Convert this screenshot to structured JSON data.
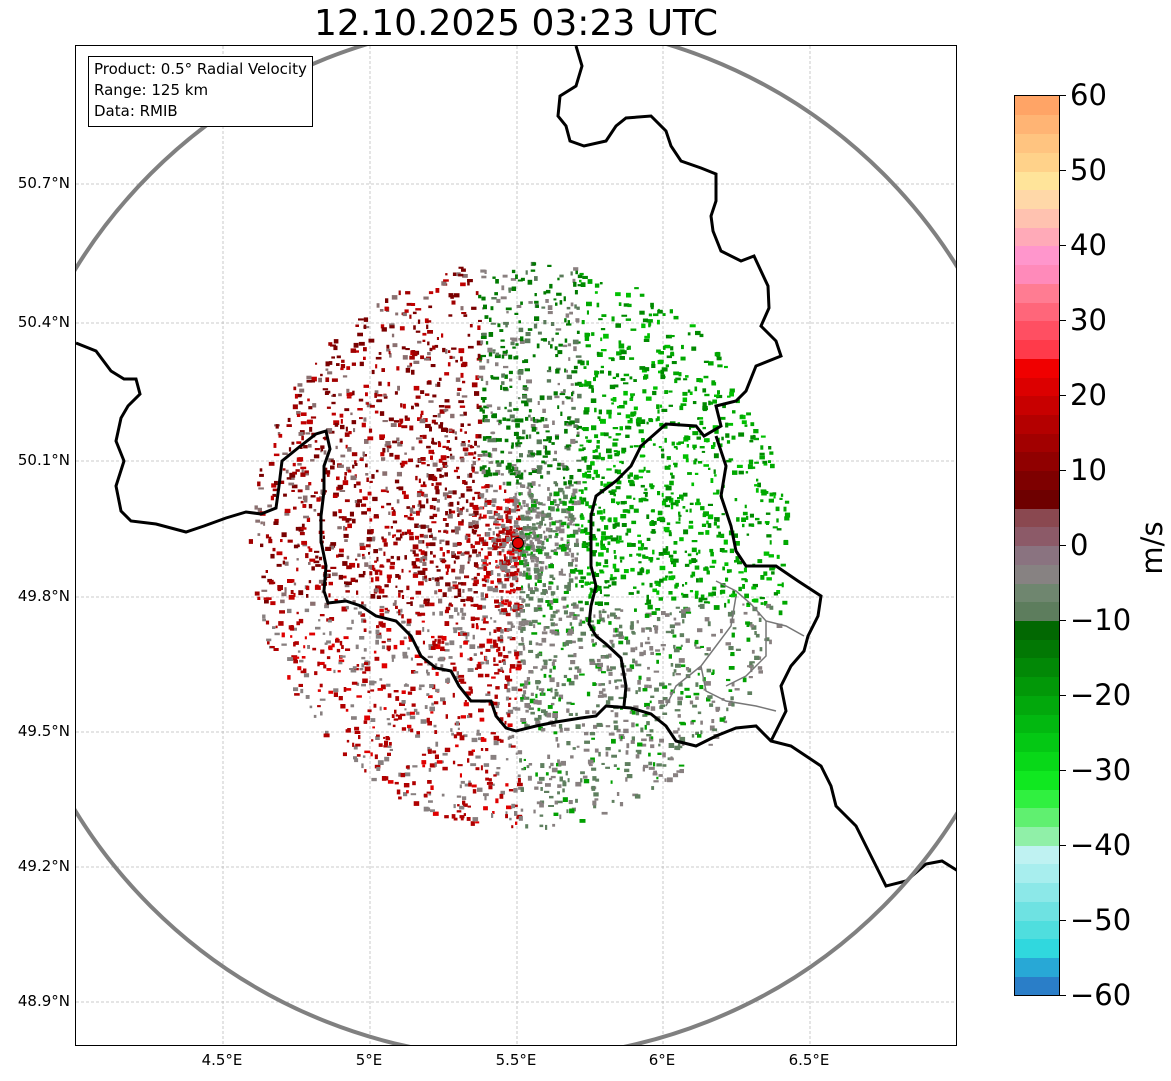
{
  "title": "12.10.2025 03:23 UTC",
  "info_box": {
    "product": "Product: 0.5° Radial Velocity",
    "range": "Range: 125 km",
    "data": "Data: RMIB"
  },
  "axes": {
    "lat_ticks": [
      "50.7°N",
      "50.4°N",
      "50.1°N",
      "49.8°N",
      "49.5°N",
      "49.2°N",
      "48.9°N"
    ],
    "lon_ticks": [
      "4.5°E",
      "5°E",
      "5.5°E",
      "6°E",
      "6.5°E"
    ]
  },
  "colorbar": {
    "label": "m/s",
    "min": -60,
    "max": 60,
    "ticks": [
      "60",
      "50",
      "40",
      "30",
      "20",
      "10",
      "0",
      "−10",
      "−20",
      "−30",
      "−40",
      "−50",
      "−60"
    ],
    "colors": [
      "#2a7ec8",
      "#28a8d6",
      "#30d8de",
      "#4fdede",
      "#6ee2e2",
      "#8ce8e8",
      "#a8eeee",
      "#bff2f2",
      "#90f0a8",
      "#60f070",
      "#30f040",
      "#10e820",
      "#08d818",
      "#04c814",
      "#02b810",
      "#02a80c",
      "#029808",
      "#028806",
      "#027804",
      "#026802",
      "#5d7d5d",
      "#6f866f",
      "#878282",
      "#8a7380",
      "#8c5a68",
      "#8a4850",
      "#6e0000",
      "#7e0000",
      "#900000",
      "#a20000",
      "#b40000",
      "#c80000",
      "#dc0000",
      "#f00000",
      "#ff3a4a",
      "#ff4f62",
      "#ff667a",
      "#ff7c92",
      "#ff8aba",
      "#ff96cc",
      "#ffaab8",
      "#ffc2b0",
      "#ffd8a8",
      "#ffe49a",
      "#ffd28a",
      "#ffc480",
      "#ffb474",
      "#ffa466"
    ],
    "colors_note": "bottom-to-top"
  },
  "map": {
    "radar_site": "RMIB radar at 5.5°E 49.92°N",
    "colors": {
      "border": "#000000",
      "range_ring": "#808080",
      "grid": "#bbbbbb",
      "site_marker": "#e00000"
    }
  }
}
